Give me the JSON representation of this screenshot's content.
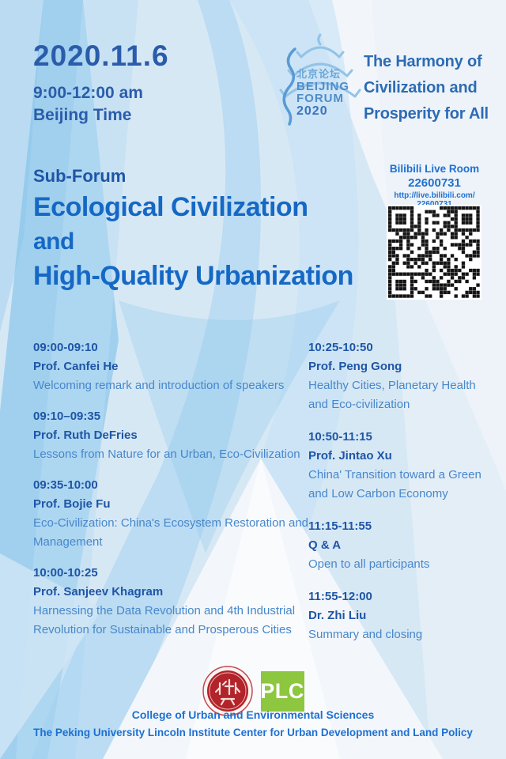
{
  "header": {
    "date": "2020.11.6",
    "time": "9:00-12:00 am",
    "timezone": "Beijing Time",
    "slogan_line1": "The Harmony of",
    "slogan_line2": "Civilization and",
    "slogan_line3": "Prosperity for All"
  },
  "logo": {
    "chinese_name": "北京论坛",
    "name_line1": "BEIJING",
    "name_line2": "FORUM",
    "year": "2020"
  },
  "live": {
    "title": "Bilibili Live Room",
    "room_number": "22600731",
    "url": "http://live.bilibili.com/",
    "url_room": "22600731"
  },
  "title": {
    "label": "Sub-Forum",
    "line1": "Ecological Civilization",
    "line2": "and",
    "line3": "High-Quality Urbanization"
  },
  "schedule": {
    "left": [
      {
        "time": "09:00-09:10",
        "speaker": "Prof. Canfei He",
        "topic": "Welcoming remark and introduction of speakers"
      },
      {
        "time": "09:10–09:35",
        "speaker": "Prof. Ruth DeFries",
        "topic": "Lessons from Nature for an Urban, Eco-Civilization"
      },
      {
        "time": "09:35-10:00",
        "speaker": "Prof. Bojie Fu",
        "topic": "Eco-Civilization: China's Ecosystem Restoration and Management"
      },
      {
        "time": "10:00-10:25",
        "speaker": "Prof. Sanjeev Khagram",
        "topic": "Harnessing the Data Revolution and 4th Industrial Revolution for Sustainable and Prosperous Cities"
      }
    ],
    "right": [
      {
        "time": "10:25-10:50",
        "speaker": "Prof. Peng Gong",
        "topic": "Healthy Cities, Planetary Health and Eco-civilization"
      },
      {
        "time": "10:50-11:15",
        "speaker": "Prof. Jintao Xu",
        "topic": "China' Transition toward a Green and Low Carbon Economy"
      },
      {
        "time": "11:15-11:55",
        "speaker": "Q & A",
        "topic": "Open to all participants"
      },
      {
        "time": "11:55-12:00",
        "speaker": "Dr. Zhi Liu",
        "topic": "Summary and closing"
      }
    ]
  },
  "footer": {
    "plc_label": "PLC",
    "line1": "College of Urban and Environmental Sciences",
    "line2": "The Peking University Lincoln Institute Center for Urban Development and Land Policy"
  },
  "colors": {
    "navy": "#1e55a5",
    "date": "#2b5cab",
    "title": "#1568c4",
    "topic": "#4787cb",
    "slogan": "#2d6bb5",
    "vivid": "#1e70d2",
    "plcgreen": "#8dc63f",
    "sealred": "#b2232a"
  }
}
